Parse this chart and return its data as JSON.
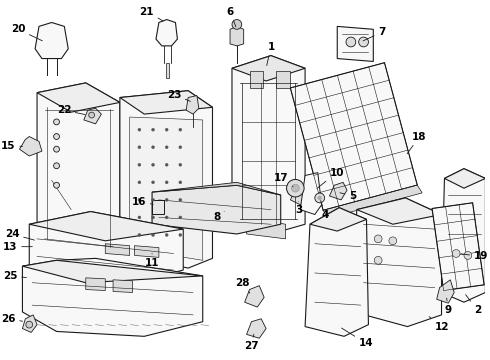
{
  "bg_color": "#ffffff",
  "line_color": "#1a1a1a",
  "text_color": "#000000",
  "fs": 7.5
}
